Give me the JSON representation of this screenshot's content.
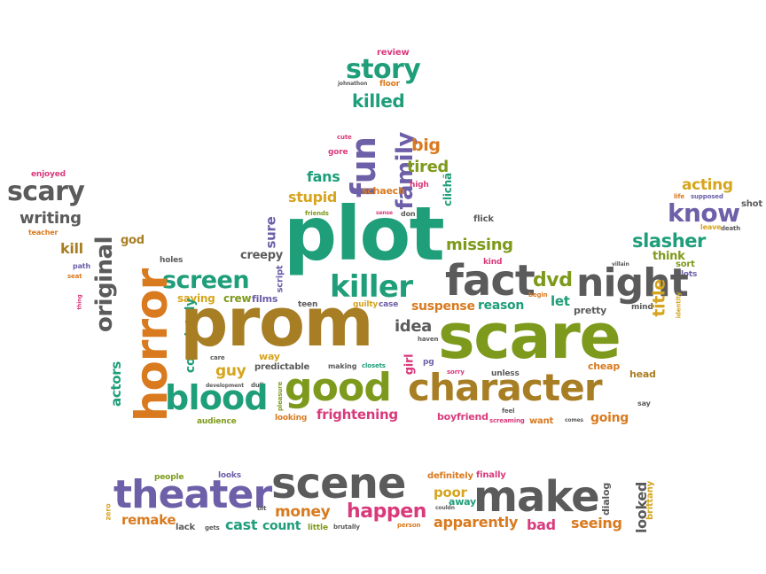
{
  "palette": {
    "green": "#1f9e7a",
    "gray": "#5b5b5b",
    "purple": "#6d5fa8",
    "orange": "#d97a1f",
    "pink": "#d93a7c",
    "olive": "#7e9a1c",
    "brown": "#a87e24",
    "gold": "#d6a51d"
  },
  "words": [
    "review",
    "story",
    "johnathon",
    "floor",
    "killed",
    "fun",
    "family",
    "big",
    "tired",
    "cute",
    "gore",
    "fans",
    "high",
    "schaech",
    "clichã",
    "stupid",
    "friends",
    "sense",
    "don",
    "enjoyed",
    "scary",
    "writing",
    "teacher",
    "kill",
    "god",
    "path",
    "seat",
    "original",
    "holes",
    "creepy",
    "sure",
    "script",
    "plot",
    "missing",
    "flick",
    "acting",
    "life",
    "supposed",
    "shot",
    "know",
    "leave",
    "death",
    "slasher",
    "think",
    "villain",
    "sort",
    "lots",
    "kind",
    "screen",
    "films",
    "saying",
    "crew",
    "horror",
    "killer",
    "fact",
    "dvd",
    "night",
    "thing",
    "begin",
    "identity",
    "let",
    "teen",
    "guilty",
    "case",
    "suspense",
    "reason",
    "pretty",
    "mind",
    "title",
    "completely",
    "prom",
    "idea",
    "haven",
    "scare",
    "actors",
    "care",
    "way",
    "predictable",
    "making",
    "closets",
    "girl",
    "pg",
    "guy",
    "sorry",
    "unless",
    "cheap",
    "head",
    "development",
    "dull",
    "pleasure",
    "good",
    "character",
    "blood",
    "looking",
    "frightening",
    "boyfriend",
    "feel",
    "say",
    "audience",
    "screaming",
    "want",
    "comes",
    "going",
    "people",
    "looks",
    "definitely",
    "finally",
    "dialog",
    "theater",
    "scene",
    "make",
    "poor",
    "away",
    "couldn",
    "zero",
    "remake",
    "bit",
    "money",
    "happen",
    "looked",
    "brittany",
    "lack",
    "gets",
    "cast",
    "count",
    "little",
    "brutally",
    "person",
    "apparently",
    "bad",
    "seeing"
  ]
}
